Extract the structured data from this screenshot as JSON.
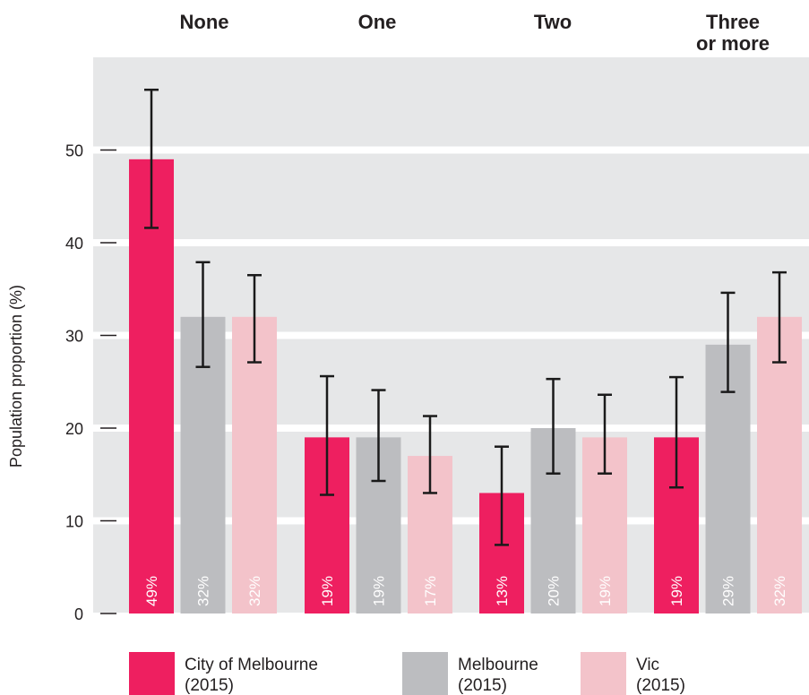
{
  "chart_data": {
    "type": "bar",
    "categories": [
      "None",
      "One",
      "Two",
      "Three or more"
    ],
    "category_lines": [
      [
        "None"
      ],
      [
        "One"
      ],
      [
        "Two"
      ],
      [
        "Three",
        "or more"
      ]
    ],
    "ylabel": "Population proportion (%)",
    "ylim": [
      0,
      60
    ],
    "yticks": [
      0,
      10,
      20,
      30,
      40,
      50
    ],
    "grid": true,
    "legend_position": "bottom",
    "series": [
      {
        "name": "City of Melbourne (2015)",
        "legend_lines": [
          "City of Melbourne",
          "(2015)"
        ],
        "color": "#ee1f60",
        "values": [
          49,
          19,
          13,
          19
        ],
        "labels": [
          "49%",
          "19%",
          "13%",
          "19%"
        ],
        "error_low": [
          41.6,
          12.8,
          7.4,
          13.6
        ],
        "error_high": [
          56.5,
          25.6,
          18.0,
          25.5
        ]
      },
      {
        "name": "Melbourne (2015)",
        "legend_lines": [
          "Melbourne",
          "(2015)"
        ],
        "color": "#bcbdc0",
        "values": [
          32,
          19,
          20,
          29
        ],
        "labels": [
          "32%",
          "19%",
          "20%",
          "29%"
        ],
        "error_low": [
          26.6,
          14.3,
          15.1,
          23.9
        ],
        "error_high": [
          37.9,
          24.1,
          25.3,
          34.6
        ]
      },
      {
        "name": "Vic (2015)",
        "legend_lines": [
          "Vic",
          "(2015)"
        ],
        "color": "#f3c3ca",
        "values": [
          32,
          17,
          19,
          32
        ],
        "labels": [
          "32%",
          "17%",
          "19%",
          "32%"
        ],
        "error_low": [
          27.1,
          13.0,
          15.1,
          27.1
        ],
        "error_high": [
          36.5,
          21.3,
          23.6,
          36.8
        ]
      }
    ]
  },
  "colors": {
    "plot_background": "#e6e7e8",
    "grid_line": "#ffffff",
    "error_bar": "#1a1a1a",
    "bar_label": "#ffffff"
  }
}
